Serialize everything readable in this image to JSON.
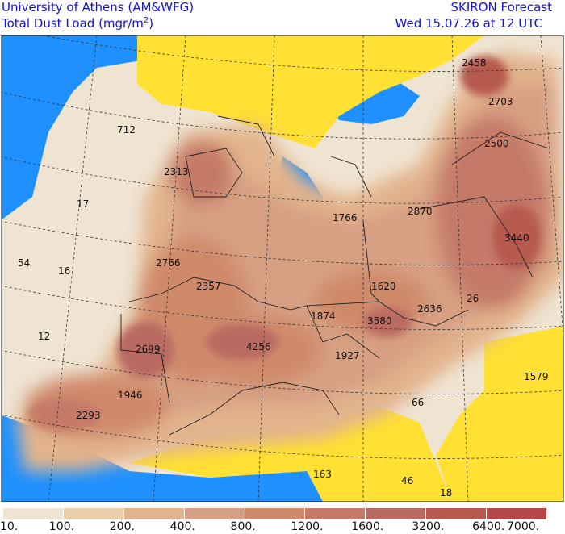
{
  "header": {
    "institution": "University of Athens (AM&WFG)",
    "product_prefix": "Total Dust Load (mgr/m",
    "product_sup": "2",
    "product_suffix": ")",
    "forecast_name": "SKIRON Forecast",
    "valid_time": "Wed 15.07.26 at 12 UTC"
  },
  "map_values": [
    {
      "label": "2458"
    },
    {
      "label": "2703"
    },
    {
      "label": "2500"
    },
    {
      "label": "712"
    },
    {
      "label": "2313"
    },
    {
      "label": "17"
    },
    {
      "label": "1766"
    },
    {
      "label": "2870"
    },
    {
      "label": "3440"
    },
    {
      "label": "54"
    },
    {
      "label": "16"
    },
    {
      "label": "2766"
    },
    {
      "label": "2357"
    },
    {
      "label": "1620"
    },
    {
      "label": "26"
    },
    {
      "label": "1874"
    },
    {
      "label": "2636"
    },
    {
      "label": "3580"
    },
    {
      "label": "12"
    },
    {
      "label": "4256"
    },
    {
      "label": "2699"
    },
    {
      "label": "1927"
    },
    {
      "label": "1579"
    },
    {
      "label": "1946"
    },
    {
      "label": "66"
    },
    {
      "label": "2293"
    },
    {
      "label": "163"
    },
    {
      "label": "46"
    },
    {
      "label": "18"
    }
  ],
  "legend": {
    "colors": [
      "#efe4d2",
      "#e8cfa7",
      "#e2b48c",
      "#d7a083",
      "#cf8a6b",
      "#c57a68",
      "#b96a62",
      "#b65a4d",
      "#b8474a"
    ],
    "labels": [
      "10.",
      "100.",
      "200.",
      "400.",
      "800.",
      "1200.",
      "1600.",
      "3200.",
      "6400.",
      "7000."
    ]
  },
  "colors": {
    "sea": "#1e90ff",
    "no_dust_land": "#ffe033",
    "header_text": "#1414c8"
  }
}
